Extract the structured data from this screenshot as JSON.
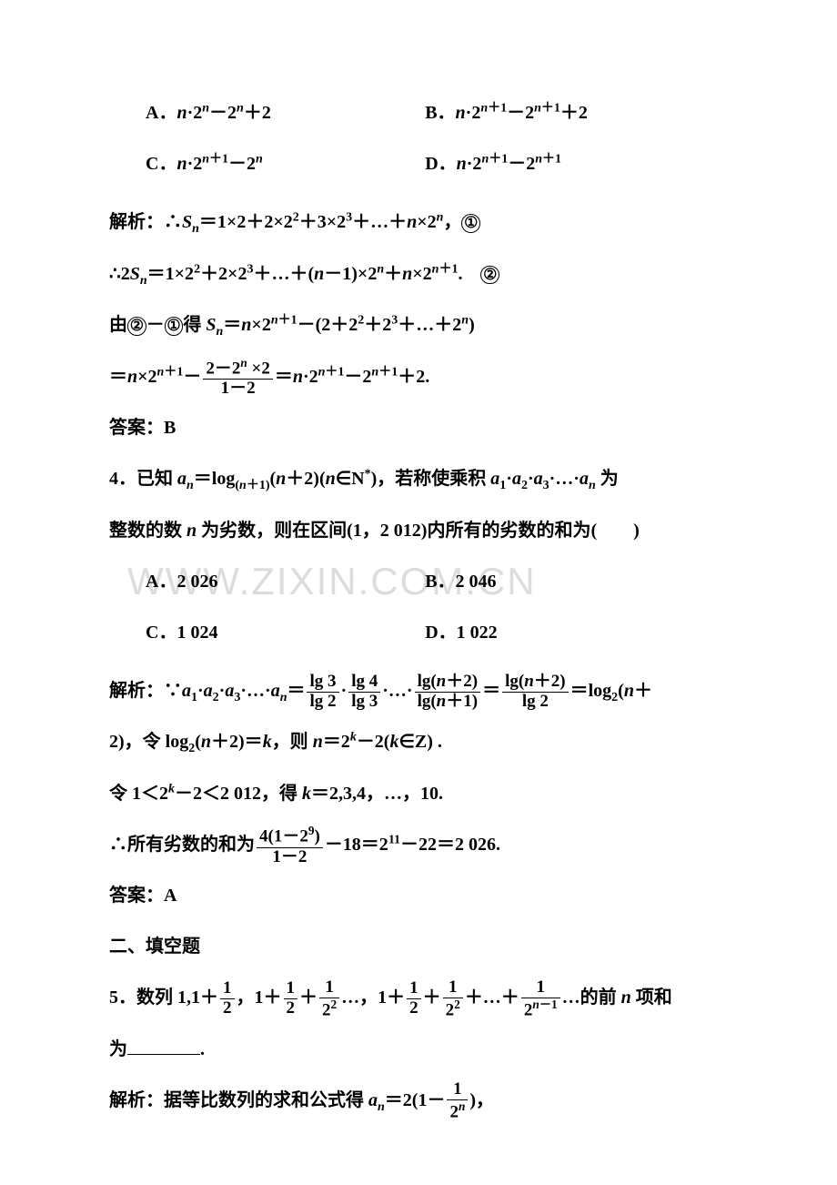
{
  "watermark": "WWW.ZIXIN.COM.CN",
  "options1": {
    "A": "A．n·2ⁿ－2ⁿ＋2",
    "B": "B．n·2ⁿ⁺¹－2ⁿ⁺¹＋2",
    "C": "C．n·2ⁿ⁺¹－2ⁿ",
    "D": "D．n·2ⁿ⁺¹－2ⁿ⁺¹"
  },
  "sol1_l1_pre": "解析：∴Sₙ＝1×2＋2×2²＋3×2³＋…＋n×2ⁿ，",
  "sol1_l2_pre": "∴2Sₙ＝1×2²＋2×2³＋…＋(n－1)×2ⁿ＋n×2ⁿ⁺¹.　",
  "sol1_l3_pre": "由",
  "sol1_l3_mid": "－",
  "sol1_l3_post": "得 Sₙ＝n×2ⁿ⁺¹－(2＋2²＋2³＋…＋2ⁿ)",
  "sol1_l4_a": "＝n×2ⁿ⁺¹－",
  "sol1_frac_num": "2－2ⁿ ×2",
  "sol1_frac_den": "1－2",
  "sol1_l4_b": "＝n·2ⁿ⁺¹－2ⁿ⁺¹＋2.",
  "ans1": "答案：B",
  "q4_a": "4．已知 aₙ＝log₍ₙ₊₁₎(n＋2)(n∈N*)，若称使乘积 a₁·a₂·a₃·…·aₙ 为整数的数 n 为劣数，则在区间(1，2 012)内所有的劣数的和为(　　)",
  "options4": {
    "A": "A．2 026",
    "B": "B．2 046",
    "C": "C．1 024",
    "D": "D．1 022"
  },
  "sol4_a": "解析：∵a₁·a₂·a₃·…·aₙ＝",
  "sol4_f1n": "lg 3",
  "sol4_f1d": "lg 2",
  "sol4_f2n": "lg 4",
  "sol4_f2d": "lg 3",
  "sol4_dots": "·…·",
  "sol4_f3n": "lg(n＋2)",
  "sol4_f3d": "lg(n＋1)",
  "sol4_eq1": "＝",
  "sol4_f4n": "lg(n＋2)",
  "sol4_f4d": "lg 2",
  "sol4_eq2": "＝log₂(n＋",
  "sol4_b": "2)，令 log₂(n＋2)＝k，则 n＝2ᵏ－2(k∈Z) .",
  "sol4_c": "令 1＜2ᵏ－2＜2 012，得 k＝2,3,4，…，10.",
  "sol4_d1": "∴所有劣数的和为",
  "sol4_fnum": "4(1－2⁹)",
  "sol4_fden": "1－2",
  "sol4_d2": "－18＝2¹¹－22＝2 026.",
  "ans4": "答案：A",
  "sec2": "二、填空题",
  "q5_a": "5．数列 1,1＋",
  "q5_f1n": "1",
  "q5_f1d": "2",
  "q5_b": "，1＋",
  "q5_f2n": "1",
  "q5_f2d": "2",
  "q5_c": "＋",
  "q5_f3n": "1",
  "q5_f3d": "2²",
  "q5_d": "…，1＋",
  "q5_f4n": "1",
  "q5_f4d": "2",
  "q5_e": "＋",
  "q5_f5n": "1",
  "q5_f5d": "2²",
  "q5_f": "＋…＋",
  "q5_f6n": "1",
  "q5_f6d": "2ⁿ⁻¹",
  "q5_g": "…的前 n 项和为",
  "q5_h": ".",
  "sol5_a": "解析：据等比数列的求和公式得 aₙ＝2(1－",
  "sol5_fn": "1",
  "sol5_fd": "2ⁿ",
  "sol5_b": ")，",
  "circ1": "①",
  "circ2": "②"
}
